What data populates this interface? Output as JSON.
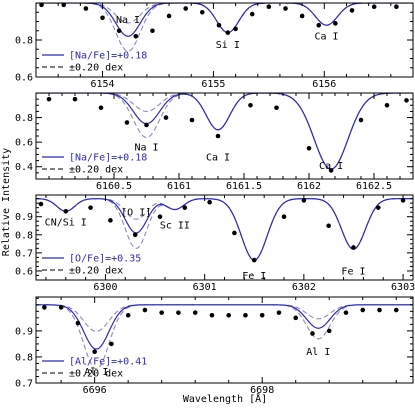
{
  "figure": {
    "ylabel": "Relative Intensity",
    "xlabel": "Wavelength [Å]"
  },
  "colors": {
    "best_fit": "#2b2bb8",
    "variation": "#8888c8",
    "observed": "#000000",
    "frame": "#000000",
    "legend_text": "#2b2bb8"
  },
  "chart_data": [
    {
      "type": "line",
      "xlim": [
        6153.4,
        6156.8
      ],
      "ylim": [
        0.6,
        1.0
      ],
      "xticks": [
        6154,
        6155,
        6156
      ],
      "yticks": [
        0.6,
        0.8
      ],
      "legend": {
        "fit_label": "[Na/Fe]=+0.18",
        "dex_label": "±0.20 dex",
        "placement": "bottom-left"
      },
      "annotations": [
        {
          "text": "Na I",
          "x": 6154.23,
          "y": 0.91
        },
        {
          "text": "Si I",
          "x": 6155.13,
          "y": 0.775
        },
        {
          "text": "Ca I",
          "x": 6156.02,
          "y": 0.822
        }
      ],
      "lines": [
        {
          "center": 6154.23,
          "sigma": 0.11,
          "depth": 0.18,
          "varies": true
        },
        {
          "center": 6155.13,
          "sigma": 0.1,
          "depth": 0.16,
          "varies": false
        },
        {
          "center": 6156.02,
          "sigma": 0.1,
          "depth": 0.12,
          "varies": false
        }
      ],
      "observed": {
        "x": [
          6153.45,
          6153.65,
          6153.85,
          6154.0,
          6154.15,
          6154.3,
          6154.45,
          6154.6,
          6154.75,
          6154.9,
          6155.05,
          6155.13,
          6155.2,
          6155.35,
          6155.5,
          6155.65,
          6155.8,
          6155.95,
          6156.1,
          6156.25,
          6156.45,
          6156.65
        ],
        "y": [
          0.99,
          0.99,
          0.97,
          0.92,
          0.85,
          0.82,
          0.85,
          0.93,
          0.97,
          0.95,
          0.88,
          0.84,
          0.86,
          0.94,
          0.98,
          0.97,
          0.93,
          0.88,
          0.89,
          0.96,
          0.98,
          0.98
        ]
      }
    },
    {
      "type": "line",
      "xlim": [
        6159.9,
        6162.8
      ],
      "ylim": [
        0.3,
        1.0
      ],
      "xticks": [
        6160.5,
        6161,
        6161.5,
        6162,
        6162.5
      ],
      "yticks": [
        0.4,
        0.6,
        0.8
      ],
      "legend": {
        "fit_label": "[Na/Fe]=+0.18",
        "dex_label": "±0.20 dex",
        "placement": "bottom-left"
      },
      "annotations": [
        {
          "text": "Na I",
          "x": 6160.75,
          "y": 0.56
        },
        {
          "text": "Ca I",
          "x": 6161.3,
          "y": 0.48
        },
        {
          "text": "Ca I",
          "x": 6162.17,
          "y": 0.41
        }
      ],
      "lines": [
        {
          "center": 6160.75,
          "sigma": 0.1,
          "depth": 0.25,
          "varies": true
        },
        {
          "center": 6161.3,
          "sigma": 0.09,
          "depth": 0.3,
          "varies": false
        },
        {
          "center": 6162.17,
          "sigma": 0.13,
          "depth": 0.62,
          "varies": false
        }
      ],
      "observed": {
        "x": [
          6160.0,
          6160.2,
          6160.4,
          6160.6,
          6160.75,
          6160.9,
          6161.1,
          6161.3,
          6161.55,
          6161.75,
          6162.0,
          6162.17,
          6162.4,
          6162.6,
          6162.75
        ],
        "y": [
          0.95,
          0.95,
          0.88,
          0.76,
          0.74,
          0.8,
          0.78,
          0.65,
          0.9,
          0.88,
          0.55,
          0.37,
          0.78,
          0.9,
          0.94
        ]
      }
    },
    {
      "type": "line",
      "xlim": [
        6299.3,
        6303.1
      ],
      "ylim": [
        0.55,
        1.02
      ],
      "xticks": [
        6300,
        6301,
        6302,
        6303
      ],
      "yticks": [
        0.6,
        0.7,
        0.8,
        0.9
      ],
      "legend": {
        "fit_label": "[O/Fe]=+0.35",
        "dex_label": "±0.20 dex",
        "placement": "bottom-left"
      },
      "annotations": [
        {
          "text": "CN/Si I",
          "x": 6299.6,
          "y": 0.87
        },
        {
          "text": "[O I]",
          "x": 6300.31,
          "y": 0.925
        },
        {
          "text": "Sc II",
          "x": 6300.7,
          "y": 0.855
        },
        {
          "text": "Fe I",
          "x": 6301.5,
          "y": 0.575
        },
        {
          "text": "Fe I",
          "x": 6302.5,
          "y": 0.6
        }
      ],
      "lines": [
        {
          "center": 6299.6,
          "sigma": 0.09,
          "depth": 0.07,
          "varies": false
        },
        {
          "center": 6300.31,
          "sigma": 0.11,
          "depth": 0.19,
          "varies": true
        },
        {
          "center": 6300.7,
          "sigma": 0.09,
          "depth": 0.06,
          "varies": false
        },
        {
          "center": 6301.5,
          "sigma": 0.13,
          "depth": 0.34,
          "varies": false
        },
        {
          "center": 6302.5,
          "sigma": 0.12,
          "depth": 0.28,
          "varies": false
        }
      ],
      "observed": {
        "x": [
          6299.35,
          6299.6,
          6299.85,
          6300.05,
          6300.3,
          6300.55,
          6300.8,
          6301.05,
          6301.3,
          6301.5,
          6301.8,
          6302.0,
          6302.25,
          6302.5,
          6302.75,
          6303.0
        ],
        "y": [
          0.97,
          0.93,
          0.95,
          0.88,
          0.8,
          0.9,
          0.95,
          0.98,
          0.81,
          0.66,
          0.9,
          0.99,
          0.85,
          0.73,
          0.95,
          0.99
        ]
      }
    },
    {
      "type": "line",
      "xlim": [
        6695.3,
        6699.8
      ],
      "ylim": [
        0.7,
        1.03
      ],
      "xticks": [
        6696,
        6698
      ],
      "yticks": [
        0.7,
        0.8,
        0.9
      ],
      "legend": {
        "fit_label": "[Al/Fe]=+0.41",
        "dex_label": "±0.20 dex",
        "placement": "bottom-left"
      },
      "annotations": [
        {
          "text": "Al I",
          "x": 6696.02,
          "y": 0.745
        },
        {
          "text": "Al I",
          "x": 6698.67,
          "y": 0.82
        }
      ],
      "lines": [
        {
          "center": 6696.02,
          "sigma": 0.15,
          "depth": 0.17,
          "varies": true
        },
        {
          "center": 6698.67,
          "sigma": 0.14,
          "depth": 0.09,
          "varies": true
        }
      ],
      "observed": {
        "x": [
          6695.4,
          6695.6,
          6695.8,
          6696.0,
          6696.2,
          6696.4,
          6696.6,
          6696.8,
          6697.0,
          6697.2,
          6697.4,
          6697.6,
          6697.8,
          6698.0,
          6698.2,
          6698.4,
          6698.6,
          6698.8,
          6699.0,
          6699.2,
          6699.4,
          6699.6
        ],
        "y": [
          0.99,
          0.99,
          0.93,
          0.82,
          0.85,
          0.96,
          0.98,
          0.97,
          0.97,
          0.97,
          0.96,
          0.96,
          0.96,
          0.96,
          0.97,
          0.95,
          0.89,
          0.9,
          0.97,
          0.98,
          0.98,
          0.98
        ]
      }
    }
  ]
}
